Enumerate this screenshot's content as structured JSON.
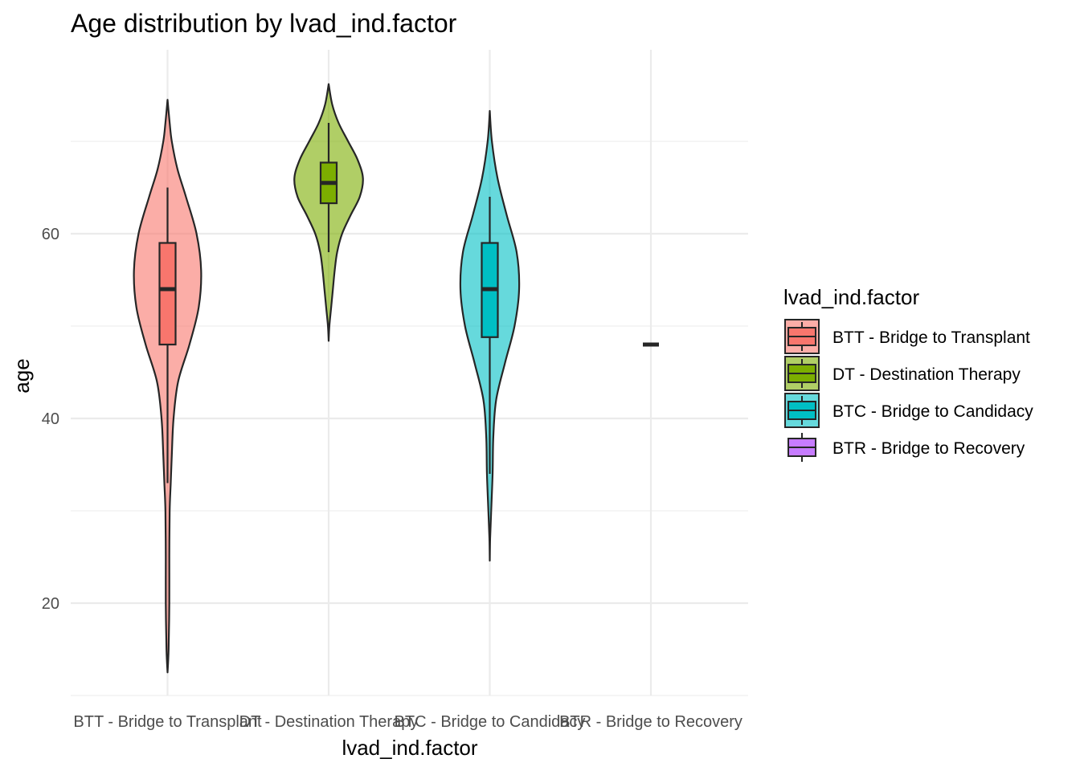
{
  "chart_data": {
    "type": "violin",
    "title": "Age distribution by lvad_ind.factor",
    "xlabel": "lvad_ind.factor",
    "ylabel": "age",
    "ylim": [
      10,
      80
    ],
    "y_ticks": [
      20,
      40,
      60
    ],
    "grid": true,
    "legend": {
      "title": "lvad_ind.factor",
      "position": "right"
    },
    "categories": [
      "BTT - Bridge to Transplant",
      "DT - Destination Therapy",
      "BTC - Bridge to Candidacy",
      "BTR - Bridge to Recovery"
    ],
    "series": [
      {
        "name": "BTT - Bridge to Transplant",
        "color": "#F8766D",
        "min": 12.5,
        "q1": 48,
        "median": 54,
        "q3": 59,
        "max": 74.5,
        "whisker_low": 33,
        "whisker_high": 65,
        "density": [
          [
            12.5,
            0
          ],
          [
            15,
            0.03
          ],
          [
            20,
            0.05
          ],
          [
            25,
            0.05
          ],
          [
            30,
            0.06
          ],
          [
            33,
            0.09
          ],
          [
            36,
            0.12
          ],
          [
            40,
            0.17
          ],
          [
            44,
            0.3
          ],
          [
            48,
            0.62
          ],
          [
            52,
            0.88
          ],
          [
            56,
            0.95
          ],
          [
            60,
            0.82
          ],
          [
            64,
            0.52
          ],
          [
            67,
            0.28
          ],
          [
            70,
            0.12
          ],
          [
            72,
            0.06
          ],
          [
            74.5,
            0
          ]
        ]
      },
      {
        "name": "DT - Destination Therapy",
        "color": "#7CAE00",
        "min": 48.4,
        "q1": 63.3,
        "median": 65.5,
        "q3": 67.7,
        "max": 76.2,
        "whisker_low": 58,
        "whisker_high": 72,
        "density": [
          [
            48.4,
            0
          ],
          [
            50,
            0.02
          ],
          [
            52,
            0.07
          ],
          [
            54,
            0.12
          ],
          [
            56,
            0.17
          ],
          [
            58,
            0.24
          ],
          [
            60,
            0.38
          ],
          [
            62,
            0.62
          ],
          [
            64,
            0.88
          ],
          [
            66,
            0.97
          ],
          [
            68,
            0.82
          ],
          [
            70,
            0.55
          ],
          [
            72,
            0.28
          ],
          [
            74,
            0.1
          ],
          [
            76.2,
            0
          ]
        ]
      },
      {
        "name": "BTC - Bridge to Candidacy",
        "color": "#00BFC4",
        "min": 24.6,
        "q1": 48.8,
        "median": 54,
        "q3": 59,
        "max": 73.3,
        "whisker_low": 34,
        "whisker_high": 64,
        "density": [
          [
            24.6,
            0
          ],
          [
            27,
            0.01
          ],
          [
            30,
            0.04
          ],
          [
            34,
            0.08
          ],
          [
            38,
            0.1
          ],
          [
            42,
            0.18
          ],
          [
            46,
            0.43
          ],
          [
            50,
            0.7
          ],
          [
            54,
            0.83
          ],
          [
            58,
            0.76
          ],
          [
            62,
            0.48
          ],
          [
            66,
            0.22
          ],
          [
            70,
            0.06
          ],
          [
            73.3,
            0
          ]
        ]
      },
      {
        "name": "BTR - Bridge to Recovery",
        "color": "#C77CFF",
        "min": 48,
        "q1": 48,
        "median": 48,
        "q3": 48,
        "max": 48,
        "whisker_low": 48,
        "whisker_high": 48,
        "density": []
      }
    ]
  }
}
